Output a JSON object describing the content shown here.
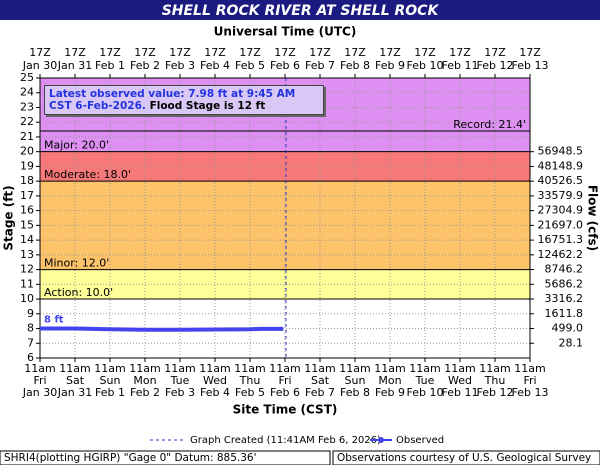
{
  "chart_data": {
    "type": "line",
    "title": "SHELL ROCK RIVER AT SHELL ROCK",
    "top_axis_label": "Universal Time (UTC)",
    "xlabel": "Site Time (CST)",
    "ylabel": "Stage (ft)",
    "y2label": "Flow (cfs)",
    "xlim": [
      "2026-01-30T11:00",
      "2026-02-13T11:00"
    ],
    "xticks": {
      "x": [
        "2026-01-30T11:00",
        "2026-01-31T11:00",
        "2026-02-01T11:00",
        "2026-02-02T11:00",
        "2026-02-03T11:00",
        "2026-02-04T11:00",
        "2026-02-05T11:00",
        "2026-02-06T11:00",
        "2026-02-07T11:00",
        "2026-02-08T11:00",
        "2026-02-09T11:00",
        "2026-02-10T11:00",
        "2026-02-11T11:00",
        "2026-02-12T11:00",
        "2026-02-13T11:00"
      ],
      "time": [
        "11am",
        "11am",
        "11am",
        "11am",
        "11am",
        "11am",
        "11am",
        "11am",
        "11am",
        "11am",
        "11am",
        "11am",
        "11am",
        "11am",
        "11am"
      ],
      "weekday": [
        "Fri",
        "Sat",
        "Sun",
        "Mon",
        "Tue",
        "Wed",
        "Thu",
        "Fri",
        "Sat",
        "Sun",
        "Mon",
        "Tue",
        "Wed",
        "Thu",
        "Fri"
      ],
      "date": [
        "Jan 30",
        "Jan 31",
        "Feb 1",
        "Feb 2",
        "Feb 3",
        "Feb 4",
        "Feb 5",
        "Feb 6",
        "Feb 7",
        "Feb 8",
        "Feb 9",
        "Feb 10",
        "Feb 11",
        "Feb 12",
        "Feb 13"
      ]
    },
    "top_xticks": {
      "time": [
        "17Z",
        "17Z",
        "17Z",
        "17Z",
        "17Z",
        "17Z",
        "17Z",
        "17Z",
        "17Z",
        "17Z",
        "17Z",
        "17Z",
        "17Z",
        "17Z",
        "17Z"
      ],
      "date": [
        "Jan 30",
        "Jan 31",
        "Feb 1",
        "Feb 2",
        "Feb 3",
        "Feb 4",
        "Feb 5",
        "Feb 6",
        "Feb 7",
        "Feb 8",
        "Feb 9",
        "Feb 10",
        "Feb 11",
        "Feb 12",
        "Feb 13"
      ]
    },
    "ylim": [
      6,
      25
    ],
    "yticks": [
      6,
      7,
      8,
      9,
      10,
      11,
      12,
      13,
      14,
      15,
      16,
      17,
      18,
      19,
      20,
      21,
      22,
      23,
      24,
      25
    ],
    "y2ticks": [
      56948.5,
      48148.9,
      40526.5,
      33579.9,
      27304.9,
      {
        "value": 21697,
        "label": "21697.0"
      },
      16751.3,
      12462.2,
      8746.2,
      5686.2,
      3316.2,
      1611.8,
      {
        "value": 499,
        "label": "499.0"
      },
      28.1
    ],
    "y2tick_stages": [
      20,
      19,
      18,
      17,
      16,
      15,
      14,
      13,
      12,
      11,
      10,
      9,
      8,
      7
    ],
    "grid": true,
    "flood_categories": [
      {
        "name": "Action: 10.0'",
        "value": 10,
        "color": "#ffff99"
      },
      {
        "name": "Minor: 12.0'",
        "value": 12,
        "color": "#fcc36a"
      },
      {
        "name": "Moderate: 18.0'",
        "value": 18,
        "color": "#f77878"
      },
      {
        "name": "Major: 20.0'",
        "value": 20,
        "color": "#dd90f2"
      }
    ],
    "record": {
      "name": "Record: 21.4'",
      "value": 21.4
    },
    "series": [
      {
        "name": "Observed",
        "color": "#4444ee",
        "x": [
          "2026-01-30T11:00",
          "2026-01-31T11:00",
          "2026-02-01T11:00",
          "2026-02-02T11:00",
          "2026-02-03T11:00",
          "2026-02-04T11:00",
          "2026-02-05T11:00",
          "2026-02-05T18:00",
          "2026-02-06T09:45"
        ],
        "values": [
          8.0,
          8.0,
          7.95,
          7.92,
          7.92,
          7.93,
          7.95,
          7.98,
          7.98
        ]
      }
    ],
    "point_label": "8 ft",
    "info": {
      "latest": "Latest observed value: 7.98 ft at 9:45 AM CST 6-Feb-2026.",
      "flood": "Flood Stage is 12 ft"
    },
    "created": {
      "label": "Graph Created (11:41AM Feb 6, 2026)",
      "x": "2026-02-06T11:41"
    },
    "footer": {
      "left": "SHRI4(plotting HGIRP) \"Gage 0\" Datum: 885.36'",
      "right": "Observations courtesy of U.S. Geological Survey"
    }
  }
}
